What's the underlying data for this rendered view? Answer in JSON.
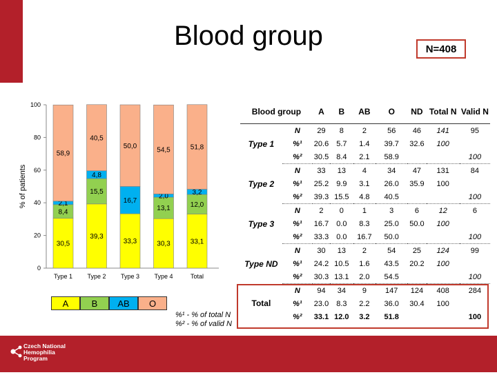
{
  "title": "Blood group",
  "n_label": "N=408",
  "colors": {
    "A": "#ffff00",
    "B": "#92d050",
    "AB": "#00b0f0",
    "O": "#fab08a",
    "accent": "#b3202a"
  },
  "chart_data": {
    "type": "bar",
    "stacked": true,
    "categories": [
      "Type 1",
      "Type 2",
      "Type 3",
      "Type 4",
      "Total"
    ],
    "series": [
      {
        "name": "A",
        "values": [
          30.5,
          39.3,
          33.3,
          30.3,
          33.1
        ],
        "labels": [
          "30,5",
          "39,3",
          "33,3",
          "30,3",
          "33,1"
        ]
      },
      {
        "name": "B",
        "values": [
          8.4,
          15.5,
          0,
          13.1,
          12.0
        ],
        "labels": [
          "8,4",
          "15,5",
          "",
          "13,1",
          "12,0"
        ]
      },
      {
        "name": "AB",
        "values": [
          2.1,
          4.8,
          16.7,
          2.0,
          3.2
        ],
        "labels": [
          "2,1",
          "4,8",
          "16,7",
          "2,0",
          "3,2"
        ]
      },
      {
        "name": "O",
        "values": [
          58.9,
          40.5,
          50.0,
          54.5,
          51.8
        ],
        "labels": [
          "58,9",
          "40,5",
          "50,0",
          "54,5",
          "51,8"
        ]
      }
    ],
    "ylabel": "% of patients",
    "ylim": [
      0,
      100
    ],
    "yticks": [
      "0",
      "20",
      "40",
      "60",
      "80",
      "100"
    ],
    "grid": false,
    "legend_position": "bottom-left"
  },
  "legend": [
    "A",
    "B",
    "AB",
    "O"
  ],
  "notes": [
    "%¹ - % of total N",
    "%² - % of valid N"
  ],
  "table": {
    "headers": [
      "Blood group",
      "A",
      "B",
      "AB",
      "O",
      "ND",
      "Total N",
      "Valid N"
    ],
    "groups": [
      {
        "name": "Type 1",
        "rows": [
          {
            "marker": "N",
            "cells": [
              "29",
              "8",
              "2",
              "56",
              "46",
              "141",
              "95"
            ]
          },
          {
            "marker": "%¹",
            "cells": [
              "20.6",
              "5.7",
              "1.4",
              "39.7",
              "32.6",
              "100",
              ""
            ]
          },
          {
            "marker": "%²",
            "cells": [
              "30.5",
              "8.4",
              "2.1",
              "58.9",
              "",
              "",
              "100"
            ]
          }
        ]
      },
      {
        "name": "Type 2",
        "rows": [
          {
            "marker": "N",
            "cells": [
              "33",
              "13",
              "4",
              "34",
              "47",
              "131",
              "84"
            ]
          },
          {
            "marker": "%¹",
            "cells": [
              "25.2",
              "9.9",
              "3.1",
              "26.0",
              "35.9",
              "100",
              ""
            ]
          },
          {
            "marker": "%²",
            "cells": [
              "39.3",
              "15.5",
              "4.8",
              "40.5",
              "",
              "",
              "100"
            ]
          }
        ]
      },
      {
        "name": "Type 3",
        "rows": [
          {
            "marker": "N",
            "cells": [
              "2",
              "0",
              "1",
              "3",
              "6",
              "12",
              "6"
            ]
          },
          {
            "marker": "%¹",
            "cells": [
              "16.7",
              "0.0",
              "8.3",
              "25.0",
              "50.0",
              "100",
              ""
            ]
          },
          {
            "marker": "%²",
            "cells": [
              "33.3",
              "0.0",
              "16.7",
              "50.0",
              "",
              "",
              "100"
            ]
          }
        ]
      },
      {
        "name": "Type ND",
        "rows": [
          {
            "marker": "N",
            "cells": [
              "30",
              "13",
              "2",
              "54",
              "25",
              "124",
              "99"
            ]
          },
          {
            "marker": "%¹",
            "cells": [
              "24.2",
              "10.5",
              "1.6",
              "43.5",
              "20.2",
              "100",
              ""
            ]
          },
          {
            "marker": "%²",
            "cells": [
              "30.3",
              "13.1",
              "2.0",
              "54.5",
              "",
              "",
              "100"
            ]
          }
        ]
      },
      {
        "name": "Total",
        "rows": [
          {
            "marker": "N",
            "cells": [
              "94",
              "34",
              "9",
              "147",
              "124",
              "408",
              "284"
            ]
          },
          {
            "marker": "%¹",
            "cells": [
              "23.0",
              "8.3",
              "2.2",
              "36.0",
              "30.4",
              "100",
              ""
            ]
          },
          {
            "marker": "%²",
            "cells": [
              "33.1",
              "12.0",
              "3.2",
              "51.8",
              "",
              "",
              "100"
            ]
          }
        ]
      }
    ]
  },
  "footer": {
    "logo_lines": [
      "Czech National",
      "Hemophilia",
      "Program"
    ]
  }
}
